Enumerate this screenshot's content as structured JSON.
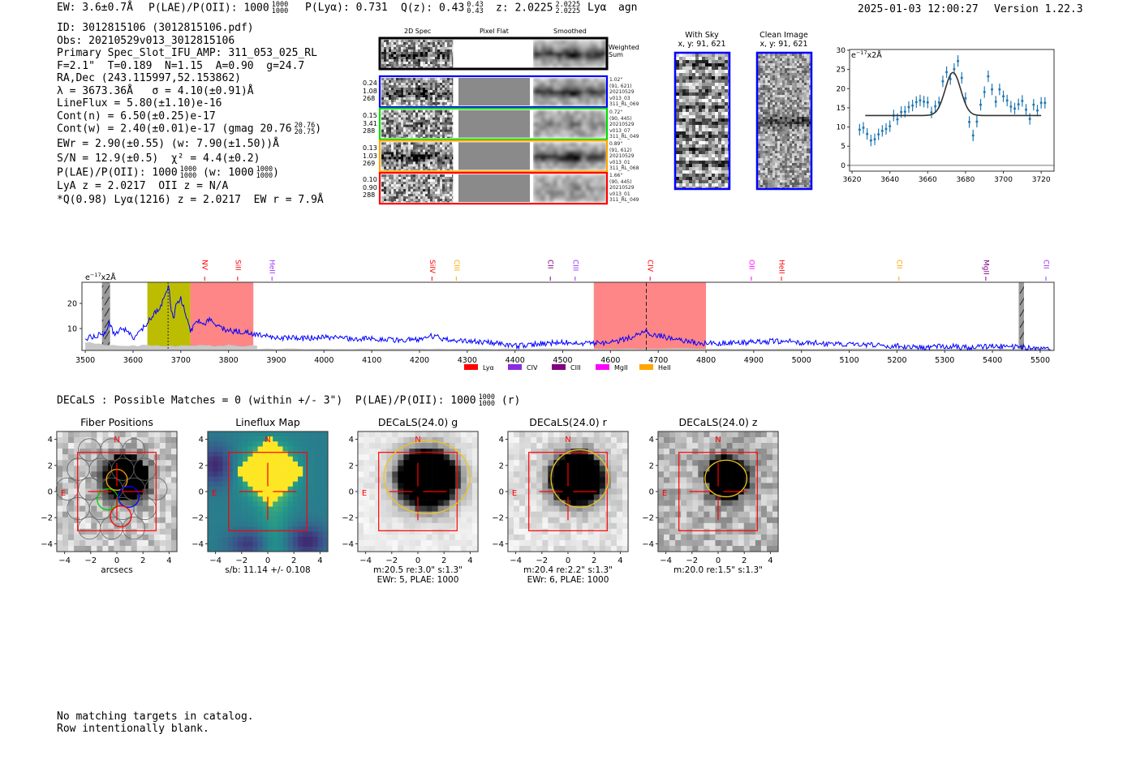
{
  "header": {
    "ew": "EW: 3.6±0.7Å",
    "plae_label": "P(LAE)/P(OII): 1000",
    "plae_hi": "1000",
    "plae_lo": "1000",
    "plya": "P(Lyα): 0.731",
    "qz_label": "Q(z): 0.43",
    "qz_hi": "0.43",
    "qz_lo": "0.43",
    "z_label": "z: 2.0225",
    "z_hi": "2.0225",
    "z_lo": "2.0225",
    "line": "Lyα",
    "classification": "agn",
    "timestamp": "2025-01-03 12:00:27",
    "version": "Version 1.22.3"
  },
  "info": {
    "id": "ID: 3012815106 (3012815106.pdf)",
    "obs": "Obs: 20210529v013_3012815106",
    "primary": "Primary Spec_Slot_IFU_AMP: 311_053_025_RL",
    "params": "F=2.1\"  T=0.189  N=1.15  A=0.90  g=24.7",
    "radec": "RA,Dec (243.115997,52.153862)",
    "lambda": "λ = 3673.36Å   σ = 4.10(±0.91)Å",
    "lineflux": "LineFlux = 5.80(±1.10)e-16",
    "cont_n": "Cont(n) = 6.50(±0.25)e-17",
    "cont_w": "Cont(w) = 2.40(±0.01)e-17 (gmag 20.76",
    "cont_w_hi": "20.76",
    "cont_w_lo": "20.75",
    "cont_w_end": ")",
    "ewr": "EWr = 2.90(±0.55) (w: 7.90(±1.50))Å",
    "sn": "S/N = 12.9(±0.5)  χ² = 4.4(±0.2)",
    "plae": "P(LAE)/P(OII): 1000",
    "plae_hi": "1000",
    "plae_lo": "1000",
    "plae_w": "(w: 1000",
    "plae_w_hi": "1000",
    "plae_w_lo": "1000",
    "plae_end": ")",
    "lya_z": "LyA z = 2.0217  OII z = N/A",
    "best": "*Q(0.98) Lyα(1216) z = 2.0217  EW r = 7.9Å"
  },
  "spec2d": {
    "columns": [
      "2D Spec",
      "Pixel Flat",
      "Smoothed"
    ],
    "weighted_label": "Weighted\nSum",
    "rows": [
      {
        "stats": "0.24\n1.08\n268",
        "info": "1.02\"\n(91, 621)\n20210529\nv013_03\n311_RL_069",
        "color": "#0000ff"
      },
      {
        "stats": "0.15\n3.41\n288",
        "info": "0.72\"\n(90, 445)\n20210529\nv013_07\n311_RL_049",
        "color": "#00dd00"
      },
      {
        "stats": "0.13\n1.03\n269",
        "info": "0.89\"\n(91, 612)\n20210529\nv013_01\n311_RL_068",
        "color": "#ffa500"
      },
      {
        "stats": "0.10\n0.90\n288",
        "info": "1.66\"\n(90, 445)\n20210529\nv013_01\n311_RL_049",
        "color": "#ff0000"
      }
    ]
  },
  "cutouts": {
    "with_sky": {
      "title": "With Sky",
      "coords": "x, y: 91, 621"
    },
    "clean": {
      "title": "Clean Image",
      "coords": "x, y: 91, 621"
    }
  },
  "chart_data": [
    {
      "type": "line",
      "name": "full-spectrum",
      "unit_base": "e",
      "unit_exp": "−17",
      "unit_rest": "x2Å",
      "xlim": [
        3493,
        5529
      ],
      "ylim": [
        1.3,
        28.4
      ],
      "xticks": [
        3500,
        3600,
        3700,
        3800,
        3900,
        4000,
        4100,
        4200,
        4300,
        4400,
        4500,
        4600,
        4700,
        4800,
        4900,
        5000,
        5100,
        5200,
        5300,
        5400,
        5500
      ],
      "yticks": [
        10,
        20
      ],
      "x": [
        3500,
        3520,
        3540,
        3550,
        3560,
        3575,
        3590,
        3600,
        3610,
        3620,
        3630,
        3640,
        3650,
        3660,
        3670,
        3675,
        3680,
        3685,
        3690,
        3700,
        3710,
        3720,
        3730,
        3740,
        3750,
        3760,
        3775,
        3790,
        3800,
        3825,
        3850,
        3875,
        3900,
        3950,
        4000,
        4050,
        4100,
        4150,
        4200,
        4225,
        4250,
        4300,
        4350,
        4400,
        4450,
        4500,
        4550,
        4600,
        4625,
        4650,
        4675,
        4690,
        4700,
        4725,
        4750,
        4800,
        4850,
        4900,
        4950,
        5000,
        5050,
        5100,
        5150,
        5200,
        5250,
        5300,
        5350,
        5400,
        5450,
        5500,
        5525
      ],
      "values": [
        6,
        7,
        8,
        12,
        8,
        10,
        9,
        6,
        8,
        10,
        12,
        15,
        17,
        20,
        25,
        27,
        17,
        13,
        20,
        22,
        16,
        9,
        12,
        13,
        11,
        14,
        11,
        10,
        9,
        9,
        8,
        7,
        6.5,
        6,
        6.5,
        6,
        6,
        5.5,
        5.5,
        7,
        6,
        5,
        4.5,
        3,
        4,
        4.5,
        4,
        4.5,
        5.5,
        7,
        9,
        7,
        7.5,
        6,
        5,
        4,
        4.5,
        4.5,
        5,
        4.5,
        4,
        3.5,
        3.5,
        3,
        2.5,
        3,
        2.5,
        3,
        2.5,
        2,
        1.5
      ],
      "regions": [
        {
          "from": 3535,
          "to": 3552,
          "color": "#999999",
          "kind": "masked"
        },
        {
          "from": 3630,
          "to": 3720,
          "color": "#bcbd00",
          "kind": "emission"
        },
        {
          "from": 3720,
          "to": 3852,
          "color": "#ff8080",
          "kind": "line"
        },
        {
          "from": 4565,
          "to": 4800,
          "color": "#ff8080",
          "kind": "line"
        },
        {
          "from": 5455,
          "to": 5466,
          "color": "#999999",
          "kind": "masked"
        }
      ],
      "markers": [
        3673.36,
        4675
      ],
      "lines": [
        {
          "label": "NV",
          "wave": 3750,
          "color": "#ff0000"
        },
        {
          "label": "SiII",
          "wave": 3819,
          "color": "#ff0000"
        },
        {
          "label": "HeII",
          "wave": 3891,
          "color": "#9933ff"
        },
        {
          "label": "SiIV",
          "wave": 4226,
          "color": "#ff0000"
        },
        {
          "label": "CIII",
          "wave": 4277,
          "color": "#ffa500"
        },
        {
          "label": "CII",
          "wave": 4474,
          "color": "#800080"
        },
        {
          "label": "CIII",
          "wave": 4526,
          "color": "#9933ff"
        },
        {
          "label": "CIV",
          "wave": 4683,
          "color": "#ff0000"
        },
        {
          "label": "OII",
          "wave": 4895,
          "color": "#ff00ff"
        },
        {
          "label": "HeII",
          "wave": 4958,
          "color": "#ff0000"
        },
        {
          "label": "CII",
          "wave": 5204,
          "color": "#ffa500"
        },
        {
          "label": "MgII",
          "wave": 5386,
          "color": "#800080"
        },
        {
          "label": "CII",
          "wave": 5512,
          "color": "#9933ff"
        }
      ],
      "legend": [
        {
          "label": "Lyα",
          "color": "#ff0000"
        },
        {
          "label": "CIV",
          "color": "#8a2be2"
        },
        {
          "label": "CIII",
          "color": "#800080"
        },
        {
          "label": "MgII",
          "color": "#ff00ff"
        },
        {
          "label": "HeII",
          "color": "#ffa500"
        }
      ],
      "series_color": "#0000ff"
    },
    {
      "type": "scatter",
      "name": "line-zoom",
      "unit_base": "e",
      "unit_exp": "−17",
      "unit_rest": "x2Å",
      "xlim": [
        3618.7,
        3726.8
      ],
      "ylim": [
        -1.5,
        30.2
      ],
      "xticks": [
        3620,
        3640,
        3660,
        3680,
        3700,
        3720
      ],
      "yticks": [
        0,
        5,
        10,
        15,
        20,
        25,
        30
      ],
      "x": [
        3624,
        3626,
        3628,
        3630,
        3632,
        3634,
        3636,
        3638,
        3640,
        3642,
        3644,
        3646,
        3648,
        3650,
        3652,
        3654,
        3656,
        3658,
        3660,
        3662,
        3664,
        3666,
        3668,
        3670,
        3672,
        3674,
        3676,
        3678,
        3680,
        3682,
        3684,
        3686,
        3688,
        3690,
        3692,
        3694,
        3696,
        3698,
        3700,
        3702,
        3704,
        3706,
        3708,
        3710,
        3712,
        3714,
        3716,
        3718,
        3720,
        3722
      ],
      "values": [
        9.3,
        9.8,
        8.2,
        6.5,
        6.8,
        8.1,
        9.0,
        9.5,
        10.2,
        13.0,
        12.0,
        13.9,
        14.0,
        15.2,
        15.6,
        16.5,
        16.9,
        16.6,
        16.4,
        13.8,
        15.4,
        16.4,
        21.9,
        24.3,
        22.5,
        25.1,
        27.2,
        22.8,
        17.5,
        11.3,
        7.8,
        11.4,
        15.8,
        19.1,
        23.2,
        19.8,
        16.6,
        19.8,
        18.0,
        16.9,
        15.3,
        14.8,
        15.9,
        16.8,
        14.5,
        12.1,
        15.8,
        14.3,
        16.3,
        16.3
      ],
      "error": 1.5,
      "fit": {
        "continuum": 13.0,
        "amplitude": 11.2,
        "center": 3673.36,
        "sigma": 4.1,
        "range": [
          3627,
          3720
        ]
      },
      "point_color": "#1f77b4"
    }
  ],
  "decals": {
    "summary": "DECaLS : Possible Matches = 0 (within +/- 3\")  P(LAE)/P(OII): 1000",
    "summary_hi": "1000",
    "summary_lo": "1000",
    "summary_end": "(r)",
    "ticks": [
      "−4",
      "−2",
      "0",
      "2",
      "4"
    ],
    "north": "N",
    "east": "E",
    "panels": [
      {
        "title": "Fiber Positions",
        "sub1": "arcsecs",
        "sub2": ""
      },
      {
        "title": "Lineflux Map",
        "sub1": "s/b: 11.14 +/- 0.108",
        "sub2": ""
      },
      {
        "title": "DECaLS(24.0) g",
        "sub1": "m:20.5  re:3.0\"  s:1.3\"",
        "sub2": "EWr: 5, PLAE: 1000"
      },
      {
        "title": "DECaLS(24.0) r",
        "sub1": "m:20.4  re:2.2\"  s:1.3\"",
        "sub2": "EWr: 6, PLAE: 1000"
      },
      {
        "title": "DECaLS(24.0) z",
        "sub1": "m:20.0  re:1.5\"  s:1.3\"",
        "sub2": ""
      }
    ]
  },
  "footer": {
    "line1": "No matching targets in catalog.",
    "line2": "Row intentionally blank."
  }
}
